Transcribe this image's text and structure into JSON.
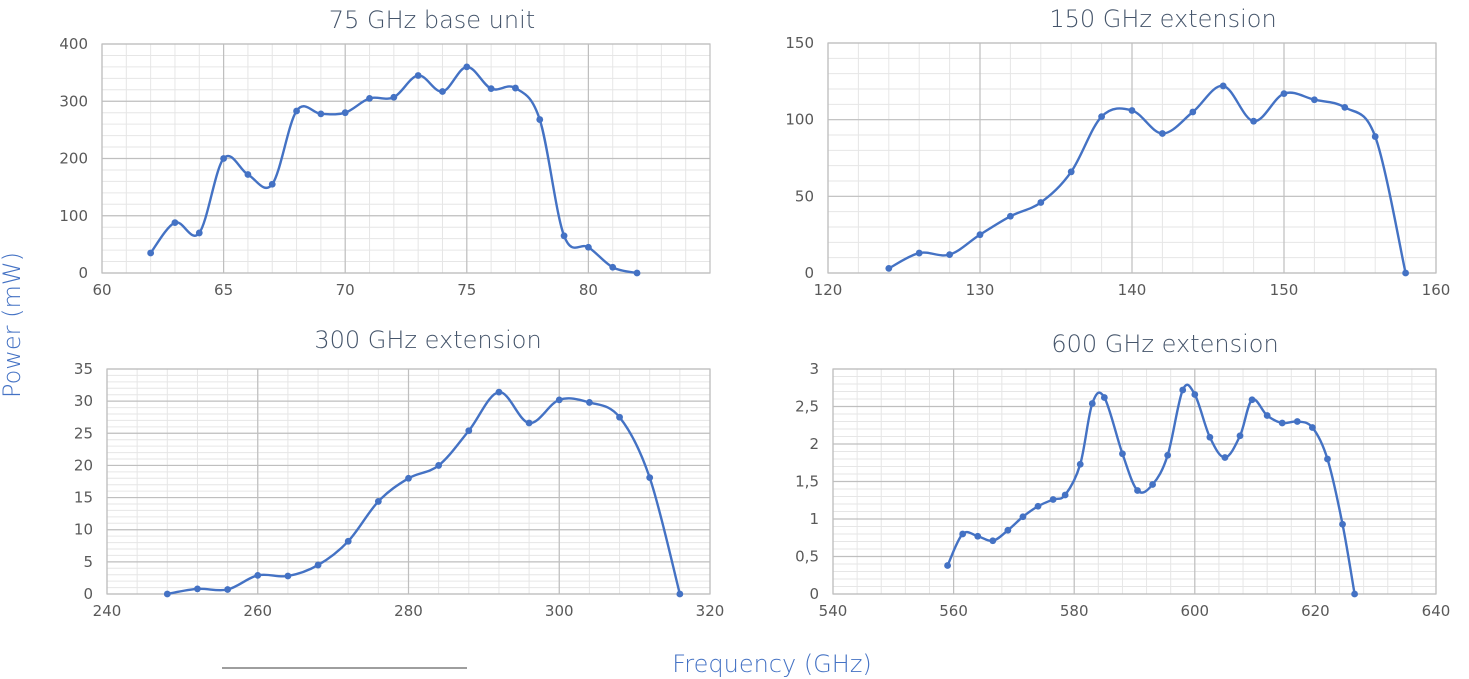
{
  "figure": {
    "ylabel": "Power (mW)",
    "xlabel": "Frequency (GHz)"
  },
  "colors": {
    "series": "#4472C4",
    "major_grid": "#BFBFBF",
    "minor_grid": "#E6E6E6",
    "text": "#595959",
    "title": "#44546A",
    "axis_title": "#4472C4"
  },
  "chart_data": [
    {
      "type": "line",
      "title": "75 GHz base unit",
      "xlim": [
        60,
        85
      ],
      "ylim": [
        0,
        400
      ],
      "xticks": [
        "60",
        "65",
        "70",
        "75",
        "80"
      ],
      "xtick_values": [
        60,
        65,
        70,
        75,
        80
      ],
      "yticks": [
        "0",
        "100",
        "200",
        "300",
        "400"
      ],
      "ytick_values": [
        0,
        100,
        200,
        300,
        400
      ],
      "grid": true,
      "x": [
        62,
        63,
        64,
        65,
        66,
        67,
        68,
        69,
        70,
        71,
        72,
        73,
        74,
        75,
        76,
        77,
        78,
        79,
        80,
        81,
        82
      ],
      "y": [
        35,
        88,
        70,
        200,
        172,
        155,
        283,
        278,
        280,
        305,
        307,
        345,
        317,
        360,
        322,
        323,
        268,
        65,
        45,
        10,
        0
      ]
    },
    {
      "type": "line",
      "title": "150 GHz extension",
      "xlim": [
        120,
        160
      ],
      "ylim": [
        0,
        150
      ],
      "xticks": [
        "120",
        "130",
        "140",
        "150",
        "160"
      ],
      "xtick_values": [
        120,
        130,
        140,
        150,
        160
      ],
      "yticks": [
        "0",
        "50",
        "100",
        "150"
      ],
      "ytick_values": [
        0,
        50,
        100,
        150
      ],
      "grid": true,
      "x": [
        124,
        126,
        128,
        130,
        132,
        134,
        136,
        138,
        140,
        142,
        144,
        146,
        148,
        150,
        152,
        154,
        156,
        158
      ],
      "y": [
        3,
        13,
        12,
        25,
        37,
        46,
        66,
        102,
        106,
        91,
        105,
        122,
        99,
        117,
        113,
        108,
        89,
        0
      ]
    },
    {
      "type": "line",
      "title": "300 GHz extension",
      "xlim": [
        240,
        320
      ],
      "ylim": [
        0,
        35
      ],
      "xticks": [
        "240",
        "260",
        "280",
        "300",
        "320"
      ],
      "xtick_values": [
        240,
        260,
        280,
        300,
        320
      ],
      "yticks": [
        "0",
        "5",
        "10",
        "15",
        "20",
        "25",
        "30",
        "35"
      ],
      "ytick_values": [
        0,
        5,
        10,
        15,
        20,
        25,
        30,
        35
      ],
      "grid": true,
      "x": [
        248,
        252,
        256,
        260,
        264,
        268,
        272,
        276,
        280,
        284,
        288,
        292,
        296,
        300,
        304,
        308,
        312,
        316
      ],
      "y": [
        0,
        0.8,
        0.7,
        2.9,
        2.8,
        4.5,
        8.2,
        14.4,
        18,
        20,
        25.4,
        31.4,
        26.6,
        30.2,
        29.8,
        27.5,
        18.1,
        0
      ]
    },
    {
      "type": "line",
      "title": "600 GHz extension",
      "xlim": [
        540,
        640
      ],
      "ylim": [
        0,
        3
      ],
      "xticks": [
        "540",
        "560",
        "580",
        "600",
        "620",
        "640"
      ],
      "xtick_values": [
        540,
        560,
        580,
        600,
        620,
        640
      ],
      "yticks": [
        "0",
        "0,5",
        "1",
        "1,5",
        "2",
        "2,5",
        "3"
      ],
      "ytick_values": [
        0,
        0.5,
        1,
        1.5,
        2,
        2.5,
        3
      ],
      "grid": true,
      "x": [
        559,
        561.5,
        564,
        566.5,
        569,
        571.5,
        574,
        576.5,
        578.5,
        581,
        583,
        585,
        588,
        590.5,
        593,
        595.5,
        598,
        600,
        602.5,
        605,
        607.5,
        609.5,
        612,
        614.5,
        617,
        619.5,
        622,
        624.5,
        626.5
      ],
      "y": [
        0.38,
        0.8,
        0.77,
        0.71,
        0.85,
        1.03,
        1.17,
        1.26,
        1.32,
        1.73,
        2.54,
        2.62,
        1.87,
        1.38,
        1.46,
        1.85,
        2.72,
        2.66,
        2.09,
        1.82,
        2.11,
        2.59,
        2.38,
        2.28,
        2.3,
        2.22,
        1.8,
        0.93,
        0
      ]
    }
  ]
}
